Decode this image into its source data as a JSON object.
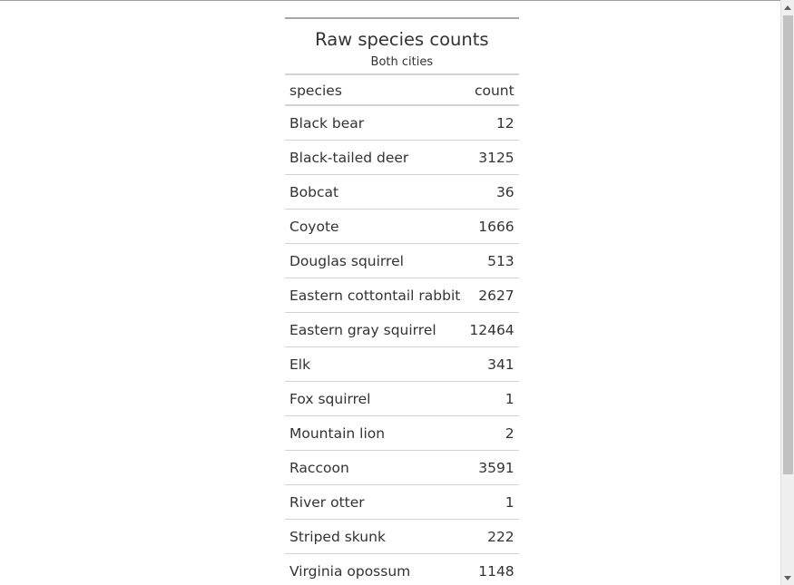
{
  "table": {
    "title": "Raw species counts",
    "subtitle": "Both cities",
    "columns": {
      "species": "species",
      "count": "count"
    },
    "rows": [
      {
        "species": "Black bear",
        "count": "12"
      },
      {
        "species": "Black-tailed deer",
        "count": "3125"
      },
      {
        "species": "Bobcat",
        "count": "36"
      },
      {
        "species": "Coyote",
        "count": "1666"
      },
      {
        "species": "Douglas squirrel",
        "count": "513"
      },
      {
        "species": "Eastern cottontail rabbit",
        "count": "2627"
      },
      {
        "species": "Eastern gray squirrel",
        "count": "12464"
      },
      {
        "species": "Elk",
        "count": "341"
      },
      {
        "species": "Fox squirrel",
        "count": "1"
      },
      {
        "species": "Mountain lion",
        "count": "2"
      },
      {
        "species": "Raccoon",
        "count": "3591"
      },
      {
        "species": "River otter",
        "count": "1"
      },
      {
        "species": "Striped skunk",
        "count": "222"
      },
      {
        "species": "Virginia opossum",
        "count": "1148"
      }
    ]
  },
  "scrollbar": {
    "up_icon": "triangle-up-icon",
    "down_icon": "triangle-down-icon"
  }
}
